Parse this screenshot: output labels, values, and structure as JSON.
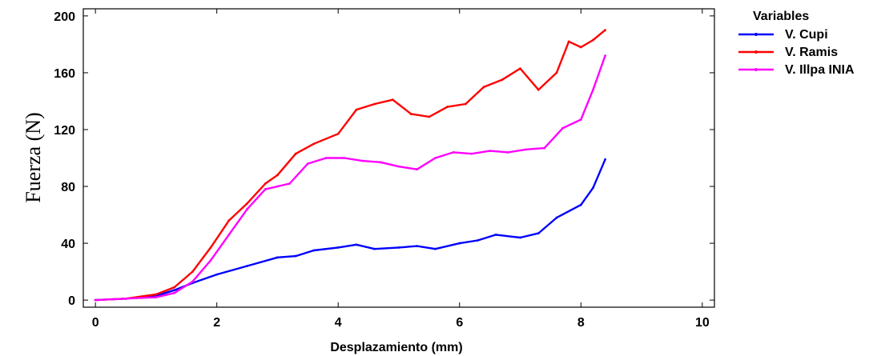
{
  "chart_data": {
    "type": "line",
    "title": "",
    "xlabel": "Desplazamiento (mm)",
    "ylabel": "Fuerza (N)",
    "xlim": [
      -0.2,
      10.2
    ],
    "ylim": [
      -5,
      205
    ],
    "xticks": [
      0,
      2,
      4,
      6,
      8,
      10
    ],
    "yticks": [
      0,
      40,
      80,
      120,
      160,
      200
    ],
    "grid": false,
    "legend": {
      "title": "Variables",
      "position": "right"
    },
    "series": [
      {
        "name": "V. Cupi",
        "color": "#0000ff",
        "x": [
          0,
          0.5,
          1.0,
          1.3,
          1.6,
          2.0,
          2.5,
          3.0,
          3.3,
          3.6,
          4.0,
          4.3,
          4.6,
          5.0,
          5.3,
          5.6,
          6.0,
          6.3,
          6.6,
          7.0,
          7.3,
          7.6,
          8.0,
          8.2,
          8.4
        ],
        "y": [
          0,
          1,
          3,
          7,
          12,
          18,
          24,
          30,
          31,
          35,
          37,
          39,
          36,
          37,
          38,
          36,
          40,
          42,
          46,
          44,
          47,
          58,
          67,
          79,
          99
        ]
      },
      {
        "name": "V. Ramis",
        "color": "#ff0000",
        "x": [
          0,
          0.5,
          1.0,
          1.3,
          1.6,
          1.9,
          2.2,
          2.5,
          2.8,
          3.0,
          3.3,
          3.6,
          4.0,
          4.3,
          4.6,
          4.9,
          5.2,
          5.5,
          5.8,
          6.1,
          6.4,
          6.7,
          7.0,
          7.3,
          7.6,
          7.8,
          8.0,
          8.2,
          8.4
        ],
        "y": [
          0,
          1,
          4,
          9,
          20,
          37,
          56,
          68,
          82,
          88,
          103,
          110,
          117,
          134,
          138,
          141,
          131,
          129,
          136,
          138,
          150,
          155,
          163,
          148,
          160,
          182,
          178,
          183,
          190
        ]
      },
      {
        "name": "V. Illpa INIA",
        "color": "#ff00ff",
        "x": [
          0,
          0.5,
          1.0,
          1.3,
          1.6,
          1.9,
          2.2,
          2.5,
          2.8,
          3.0,
          3.2,
          3.5,
          3.8,
          4.1,
          4.4,
          4.7,
          5.0,
          5.3,
          5.6,
          5.9,
          6.2,
          6.5,
          6.8,
          7.1,
          7.4,
          7.7,
          8.0,
          8.2,
          8.4
        ],
        "y": [
          0,
          1,
          2,
          5,
          13,
          28,
          46,
          64,
          78,
          80,
          82,
          96,
          100,
          100,
          98,
          97,
          94,
          92,
          100,
          104,
          103,
          105,
          104,
          106,
          107,
          121,
          127,
          148,
          172
        ]
      }
    ]
  }
}
